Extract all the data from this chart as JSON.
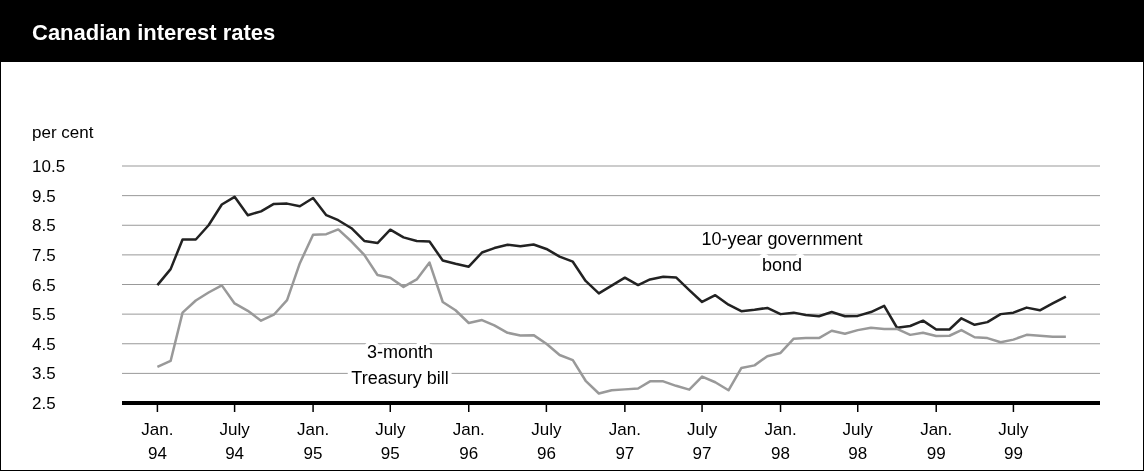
{
  "chart_data": {
    "type": "line",
    "title": "Canadian interest rates",
    "ylabel": "per cent",
    "x": [
      "1994-01",
      "1994-02",
      "1994-03",
      "1994-04",
      "1994-05",
      "1994-06",
      "1994-07",
      "1994-08",
      "1994-09",
      "1994-10",
      "1994-11",
      "1994-12",
      "1995-01",
      "1995-02",
      "1995-03",
      "1995-04",
      "1995-05",
      "1995-06",
      "1995-07",
      "1995-08",
      "1995-09",
      "1995-10",
      "1995-11",
      "1995-12",
      "1996-01",
      "1996-02",
      "1996-03",
      "1996-04",
      "1996-05",
      "1996-06",
      "1996-07",
      "1996-08",
      "1996-09",
      "1996-10",
      "1996-11",
      "1996-12",
      "1997-01",
      "1997-02",
      "1997-03",
      "1997-04",
      "1997-05",
      "1997-06",
      "1997-07",
      "1997-08",
      "1997-09",
      "1997-10",
      "1997-11",
      "1997-12",
      "1998-01",
      "1998-02",
      "1998-03",
      "1998-04",
      "1998-05",
      "1998-06",
      "1998-07",
      "1998-08",
      "1998-09",
      "1998-10",
      "1998-11",
      "1998-12",
      "1999-01",
      "1999-02",
      "1999-03",
      "1999-04",
      "1999-05",
      "1999-06",
      "1999-07",
      "1999-08",
      "1999-09",
      "1999-10",
      "1999-11"
    ],
    "series": [
      {
        "name": "10-year government bond",
        "color": "#222222",
        "values": [
          6.48,
          7.02,
          8.02,
          8.02,
          8.5,
          9.2,
          9.46,
          8.84,
          8.97,
          9.22,
          9.23,
          9.14,
          9.42,
          8.84,
          8.67,
          8.4,
          7.97,
          7.9,
          8.35,
          8.09,
          7.97,
          7.95,
          7.31,
          7.2,
          7.1,
          7.58,
          7.73,
          7.84,
          7.79,
          7.85,
          7.7,
          7.44,
          7.27,
          6.62,
          6.2,
          6.46,
          6.73,
          6.48,
          6.67,
          6.76,
          6.74,
          6.31,
          5.91,
          6.14,
          5.82,
          5.6,
          5.65,
          5.71,
          5.5,
          5.55,
          5.47,
          5.43,
          5.57,
          5.43,
          5.44,
          5.57,
          5.78,
          5.04,
          5.1,
          5.28,
          4.98,
          4.98,
          5.36,
          5.14,
          5.23,
          5.5,
          5.55,
          5.72,
          5.63,
          5.86,
          6.09
        ]
      },
      {
        "name": "3-month Treasury bill",
        "color": "#999999",
        "values": [
          3.72,
          3.92,
          5.55,
          5.96,
          6.23,
          6.47,
          5.86,
          5.61,
          5.28,
          5.48,
          5.97,
          7.22,
          8.18,
          8.2,
          8.36,
          7.95,
          7.5,
          6.82,
          6.73,
          6.42,
          6.67,
          7.24,
          5.91,
          5.63,
          5.2,
          5.3,
          5.12,
          4.87,
          4.78,
          4.79,
          4.5,
          4.12,
          3.95,
          3.25,
          2.82,
          2.93,
          2.96,
          2.99,
          3.23,
          3.23,
          3.08,
          2.95,
          3.39,
          3.2,
          2.93,
          3.68,
          3.77,
          4.08,
          4.19,
          4.67,
          4.69,
          4.69,
          4.94,
          4.84,
          4.96,
          5.04,
          5.0,
          5.0,
          4.8,
          4.87,
          4.76,
          4.77,
          4.96,
          4.72,
          4.69,
          4.55,
          4.64,
          4.8,
          4.77,
          4.74,
          4.74
        ]
      }
    ],
    "xlim": [
      "1993-10-10",
      "2000-01-20"
    ],
    "xticks": [
      {
        "value": "1994-01",
        "label": "Jan. 94"
      },
      {
        "value": "1994-07",
        "label": "July 94"
      },
      {
        "value": "1995-01",
        "label": "Jan. 95"
      },
      {
        "value": "1995-07",
        "label": "July 95"
      },
      {
        "value": "1996-01",
        "label": "Jan. 96"
      },
      {
        "value": "1996-07",
        "label": "July 96"
      },
      {
        "value": "1997-01",
        "label": "Jan. 97"
      },
      {
        "value": "1997-07",
        "label": "July 97"
      },
      {
        "value": "1998-01",
        "label": "Jan. 98"
      },
      {
        "value": "1998-07",
        "label": "July 98"
      },
      {
        "value": "1999-01",
        "label": "Jan. 99"
      },
      {
        "value": "1999-07",
        "label": "July 99"
      }
    ],
    "ylim": [
      2.5,
      10.5
    ],
    "yticks": [
      2.5,
      3.5,
      4.5,
      5.5,
      6.5,
      7.5,
      8.5,
      9.5,
      10.5
    ],
    "grid": "y",
    "legend": false,
    "marker": "none",
    "line_style": "solid"
  }
}
